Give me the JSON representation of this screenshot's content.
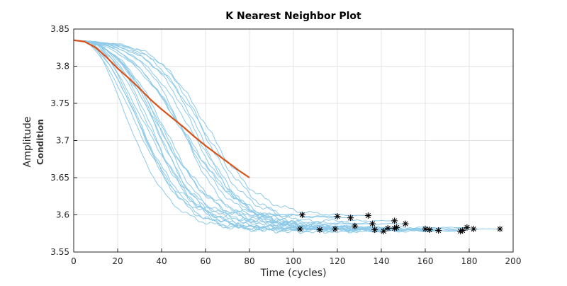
{
  "chart_data": {
    "type": "line",
    "title": "K Nearest Neighbor Plot",
    "xlabel": "Time (cycles)",
    "ylabel": "Amplitude",
    "ylabel_secondary": "Condition",
    "xlim": [
      0,
      200
    ],
    "ylim": [
      3.55,
      3.85
    ],
    "xticks": [
      "0",
      "20",
      "40",
      "60",
      "80",
      "100",
      "120",
      "140",
      "160",
      "180",
      "200"
    ],
    "yticks": [
      "3.55",
      "3.6",
      "3.65",
      "3.7",
      "3.75",
      "3.8",
      "3.85"
    ],
    "grid": true,
    "colors": {
      "neighbors": "#8ecae8",
      "test_series": "#d95319",
      "end_markers": "#000000",
      "grid": "#e4e4e4",
      "axes": "#262626"
    },
    "test_series": {
      "x": [
        0,
        5,
        10,
        15,
        20,
        25,
        30,
        35,
        40,
        45,
        50,
        55,
        60,
        65,
        70,
        75,
        80
      ],
      "y": [
        3.835,
        3.833,
        3.825,
        3.812,
        3.797,
        3.784,
        3.77,
        3.755,
        3.742,
        3.73,
        3.718,
        3.705,
        3.693,
        3.682,
        3.671,
        3.66,
        3.65
      ]
    },
    "end_points": [
      {
        "x": 103,
        "y": 3.581
      },
      {
        "x": 104,
        "y": 3.6
      },
      {
        "x": 112,
        "y": 3.58
      },
      {
        "x": 119,
        "y": 3.581
      },
      {
        "x": 120,
        "y": 3.598
      },
      {
        "x": 126,
        "y": 3.596
      },
      {
        "x": 128,
        "y": 3.585
      },
      {
        "x": 134,
        "y": 3.599
      },
      {
        "x": 136,
        "y": 3.588
      },
      {
        "x": 137,
        "y": 3.58
      },
      {
        "x": 141,
        "y": 3.578
      },
      {
        "x": 143,
        "y": 3.582
      },
      {
        "x": 146,
        "y": 3.592
      },
      {
        "x": 146,
        "y": 3.582
      },
      {
        "x": 147,
        "y": 3.583
      },
      {
        "x": 151,
        "y": 3.588
      },
      {
        "x": 160,
        "y": 3.581
      },
      {
        "x": 162,
        "y": 3.58
      },
      {
        "x": 166,
        "y": 3.579
      },
      {
        "x": 176,
        "y": 3.578
      },
      {
        "x": 177,
        "y": 3.579
      },
      {
        "x": 179,
        "y": 3.583
      },
      {
        "x": 182,
        "y": 3.581
      },
      {
        "x": 194,
        "y": 3.581
      }
    ],
    "neighbor_shape": {
      "start_y": 3.835,
      "delay_min": 4,
      "delay_max": 12,
      "mid_points_min": 22,
      "mid_points_max": 62,
      "spread": 15
    }
  }
}
